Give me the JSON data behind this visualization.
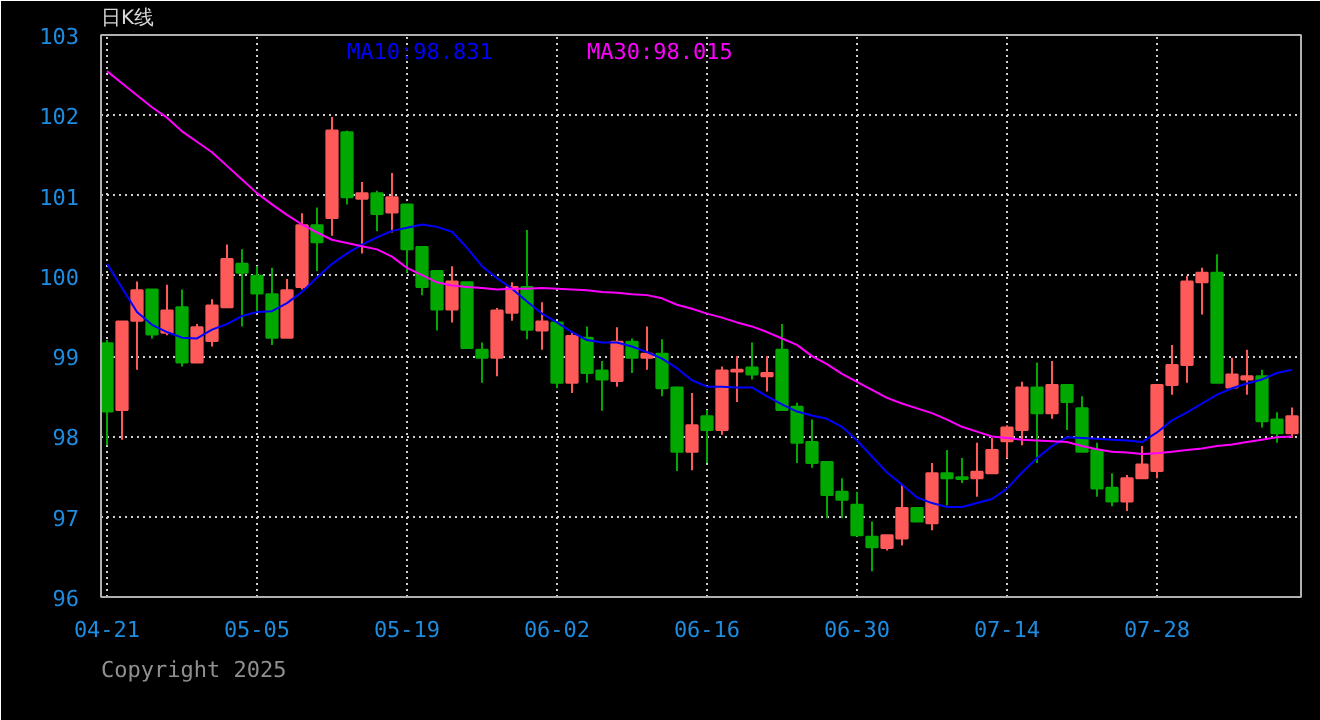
{
  "chart_data": {
    "type": "candlestick",
    "title": "日K线",
    "categories": [
      "04-21",
      null,
      null,
      null,
      null,
      null,
      null,
      null,
      null,
      null,
      "05-05",
      null,
      null,
      null,
      null,
      null,
      null,
      null,
      null,
      null,
      "05-19",
      null,
      null,
      null,
      null,
      null,
      null,
      null,
      null,
      null,
      "06-02",
      null,
      null,
      null,
      null,
      null,
      null,
      null,
      null,
      null,
      "06-16",
      null,
      null,
      null,
      null,
      null,
      null,
      null,
      null,
      null,
      "06-30",
      null,
      null,
      null,
      null,
      null,
      null,
      null,
      null,
      null,
      "07-14",
      null,
      null,
      null,
      null,
      null,
      null,
      null,
      null,
      null,
      "07-28",
      null,
      null,
      null,
      null,
      null,
      null,
      null,
      null,
      null
    ],
    "ohlc": [
      [
        99.16,
        99.2,
        97.89,
        98.31
      ],
      [
        98.33,
        99.43,
        97.96,
        99.43
      ],
      [
        99.44,
        99.93,
        98.83,
        99.82
      ],
      [
        99.83,
        99.83,
        99.22,
        99.27
      ],
      [
        99.29,
        99.89,
        99.26,
        99.57
      ],
      [
        99.61,
        99.83,
        98.87,
        98.92
      ],
      [
        98.92,
        99.4,
        98.92,
        99.36
      ],
      [
        99.19,
        99.71,
        99.12,
        99.63
      ],
      [
        99.61,
        100.39,
        99.6,
        100.21
      ],
      [
        100.15,
        100.33,
        99.37,
        100.04
      ],
      [
        100.0,
        100.12,
        99.54,
        99.78
      ],
      [
        99.77,
        100.1,
        99.14,
        99.23
      ],
      [
        99.23,
        99.96,
        99.23,
        99.82
      ],
      [
        99.86,
        100.78,
        99.83,
        100.63
      ],
      [
        100.63,
        100.85,
        100.06,
        100.42
      ],
      [
        100.72,
        101.98,
        100.5,
        101.81
      ],
      [
        101.79,
        101.81,
        100.89,
        100.98
      ],
      [
        100.96,
        101.17,
        100.28,
        101.03
      ],
      [
        101.03,
        101.06,
        100.56,
        100.77
      ],
      [
        100.79,
        101.28,
        100.54,
        100.98
      ],
      [
        100.89,
        100.89,
        100.04,
        100.33
      ],
      [
        100.36,
        100.36,
        99.76,
        99.86
      ],
      [
        100.06,
        100.06,
        99.32,
        99.58
      ],
      [
        99.58,
        100.12,
        99.42,
        99.93
      ],
      [
        99.92,
        99.92,
        99.1,
        99.1
      ],
      [
        99.08,
        99.17,
        98.67,
        98.98
      ],
      [
        98.98,
        99.6,
        98.75,
        99.57
      ],
      [
        99.54,
        99.92,
        99.44,
        99.86
      ],
      [
        99.86,
        100.57,
        99.21,
        99.33
      ],
      [
        99.32,
        99.67,
        99.08,
        99.43
      ],
      [
        99.42,
        99.42,
        98.6,
        98.67
      ],
      [
        98.67,
        99.29,
        98.54,
        99.25
      ],
      [
        99.23,
        99.37,
        98.67,
        98.79
      ],
      [
        98.82,
        98.94,
        98.32,
        98.71
      ],
      [
        98.69,
        99.36,
        98.62,
        99.18
      ],
      [
        99.18,
        99.22,
        98.79,
        98.98
      ],
      [
        98.98,
        99.37,
        98.83,
        99.03
      ],
      [
        99.03,
        99.21,
        98.5,
        98.6
      ],
      [
        98.61,
        98.62,
        97.57,
        97.81
      ],
      [
        97.81,
        98.54,
        97.58,
        98.14
      ],
      [
        98.25,
        98.33,
        97.67,
        98.08
      ],
      [
        98.08,
        98.87,
        98.02,
        98.82
      ],
      [
        98.81,
        99.0,
        98.43,
        98.83
      ],
      [
        98.86,
        99.17,
        98.71,
        98.77
      ],
      [
        98.75,
        99.0,
        98.56,
        98.79
      ],
      [
        99.08,
        99.4,
        98.32,
        98.33
      ],
      [
        98.37,
        98.42,
        97.67,
        97.92
      ],
      [
        97.93,
        98.21,
        97.61,
        97.67
      ],
      [
        97.68,
        97.68,
        96.98,
        97.27
      ],
      [
        97.31,
        97.48,
        96.98,
        97.21
      ],
      [
        97.15,
        97.31,
        96.75,
        96.77
      ],
      [
        96.75,
        96.94,
        96.32,
        96.62
      ],
      [
        96.61,
        96.77,
        96.58,
        96.77
      ],
      [
        96.73,
        97.4,
        96.64,
        97.11
      ],
      [
        97.11,
        97.11,
        96.94,
        96.94
      ],
      [
        96.92,
        97.67,
        96.83,
        97.54
      ],
      [
        97.54,
        97.83,
        97.14,
        97.48
      ],
      [
        97.49,
        97.73,
        97.42,
        97.47
      ],
      [
        97.48,
        97.92,
        97.25,
        97.56
      ],
      [
        97.54,
        97.98,
        97.54,
        97.83
      ],
      [
        97.94,
        98.14,
        97.73,
        98.11
      ],
      [
        98.08,
        98.68,
        97.89,
        98.61
      ],
      [
        98.61,
        98.92,
        97.67,
        98.29
      ],
      [
        98.29,
        98.94,
        98.22,
        98.64
      ],
      [
        98.64,
        98.64,
        98.08,
        98.43
      ],
      [
        98.35,
        98.5,
        97.81,
        97.81
      ],
      [
        97.83,
        97.92,
        97.25,
        97.35
      ],
      [
        97.36,
        97.54,
        97.13,
        97.19
      ],
      [
        97.19,
        97.52,
        97.07,
        97.48
      ],
      [
        97.48,
        97.88,
        97.48,
        97.65
      ],
      [
        97.57,
        98.64,
        97.48,
        98.64
      ],
      [
        98.64,
        99.14,
        98.52,
        98.89
      ],
      [
        98.89,
        100.0,
        98.67,
        99.93
      ],
      [
        99.92,
        100.1,
        99.52,
        100.04
      ],
      [
        100.04,
        100.27,
        98.67,
        98.67
      ],
      [
        98.61,
        98.98,
        98.61,
        98.77
      ],
      [
        98.71,
        99.08,
        98.52,
        98.75
      ],
      [
        98.75,
        98.83,
        98.11,
        98.19
      ],
      [
        98.21,
        98.3,
        97.92,
        98.04
      ],
      [
        98.04,
        98.36,
        97.98,
        98.25
      ]
    ],
    "colors": [
      "#00a800",
      "#ff5a5a",
      "#ff5a5a",
      "#00a800",
      "#ff5a5a",
      "#00a800",
      "#ff5a5a",
      "#ff5a5a",
      "#ff5a5a",
      "#00a800",
      "#00a800",
      "#00a800",
      "#ff5a5a",
      "#ff5a5a",
      "#00a800",
      "#ff5a5a",
      "#00a800",
      "#ff5a5a",
      "#00a800",
      "#ff5a5a",
      "#00a800",
      "#00a800",
      "#00a800",
      "#ff5a5a",
      "#00a800",
      "#00a800",
      "#ff5a5a",
      "#ff5a5a",
      "#00a800",
      "#ff5a5a",
      "#00a800",
      "#ff5a5a",
      "#00a800",
      "#00a800",
      "#ff5a5a",
      "#00a800",
      "#ff5a5a",
      "#00a800",
      "#00a800",
      "#ff5a5a",
      "#00a800",
      "#ff5a5a",
      "#ff5a5a",
      "#00a800",
      "#ff5a5a",
      "#00a800",
      "#00a800",
      "#00a800",
      "#00a800",
      "#00a800",
      "#00a800",
      "#00a800",
      "#ff5a5a",
      "#ff5a5a",
      "#00a800",
      "#ff5a5a",
      "#00a800",
      "#00a800",
      "#ff5a5a",
      "#ff5a5a",
      "#ff5a5a",
      "#ff5a5a",
      "#00a800",
      "#ff5a5a",
      "#00a800",
      "#00a800",
      "#00a800",
      "#00a800",
      "#ff5a5a",
      "#ff5a5a",
      "#ff5a5a",
      "#ff5a5a",
      "#ff5a5a",
      "#ff5a5a",
      "#00a800",
      "#ff5a5a",
      "#ff5a5a",
      "#00a800",
      "#00a800",
      "#ff5a5a"
    ],
    "series": [
      {
        "name": "MA10:98.831",
        "type": "line",
        "color": "#0000ff",
        "values": [
          100.15,
          99.85,
          99.55,
          99.39,
          99.3,
          99.23,
          99.22,
          99.33,
          99.4,
          99.5,
          99.55,
          99.56,
          99.66,
          99.8,
          99.98,
          100.15,
          100.28,
          100.39,
          100.48,
          100.56,
          100.6,
          100.64,
          100.61,
          100.55,
          100.35,
          100.12,
          99.97,
          99.84,
          99.68,
          99.53,
          99.42,
          99.3,
          99.2,
          99.17,
          99.17,
          99.12,
          99.05,
          98.97,
          98.85,
          98.7,
          98.62,
          98.62,
          98.61,
          98.61,
          98.5,
          98.4,
          98.31,
          98.26,
          98.22,
          98.12,
          97.95,
          97.75,
          97.55,
          97.4,
          97.24,
          97.17,
          97.12,
          97.12,
          97.17,
          97.22,
          97.35,
          97.55,
          97.73,
          97.88,
          97.99,
          97.98,
          97.97,
          97.96,
          97.95,
          97.93,
          98.05,
          98.2,
          98.3,
          98.41,
          98.52,
          98.6,
          98.66,
          98.71,
          98.79,
          98.83
        ]
      },
      {
        "name": "MA30:98.015",
        "type": "line",
        "color": "#ff00ff",
        "values": [
          102.55,
          102.4,
          102.25,
          102.1,
          101.97,
          101.8,
          101.67,
          101.54,
          101.37,
          101.2,
          101.03,
          100.89,
          100.76,
          100.64,
          100.54,
          100.45,
          100.41,
          100.37,
          100.33,
          100.24,
          100.1,
          100.01,
          99.92,
          99.88,
          99.86,
          99.85,
          99.83,
          99.84,
          99.84,
          99.85,
          99.84,
          99.83,
          99.82,
          99.8,
          99.79,
          99.77,
          99.76,
          99.72,
          99.64,
          99.59,
          99.53,
          99.48,
          99.42,
          99.37,
          99.3,
          99.22,
          99.14,
          99.0,
          98.9,
          98.78,
          98.68,
          98.58,
          98.48,
          98.41,
          98.35,
          98.29,
          98.21,
          98.12,
          98.06,
          98.0,
          97.98,
          97.96,
          97.95,
          97.94,
          97.93,
          97.88,
          97.84,
          97.81,
          97.8,
          97.78,
          97.79,
          97.81,
          97.83,
          97.85,
          97.88,
          97.9,
          97.93,
          97.96,
          97.99,
          98.0
        ]
      }
    ],
    "ylim": [
      96,
      103
    ],
    "yticks": [
      96,
      97,
      98,
      99,
      100,
      101,
      102,
      103
    ],
    "grid": true,
    "annotations": [
      "Copyright 2025"
    ]
  }
}
